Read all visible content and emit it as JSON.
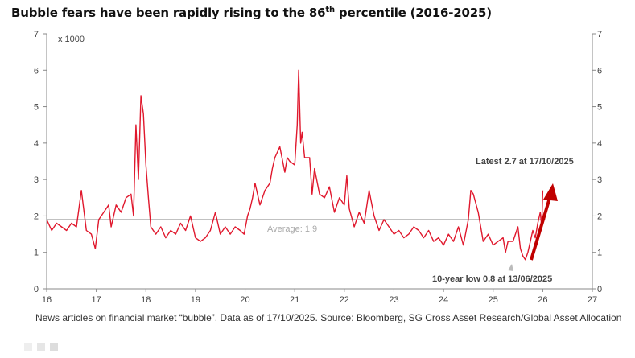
{
  "title": {
    "main": "Bubble fears have been rapidly rising to the 86",
    "sup": "th",
    "rest": " percentile (2016-2025)"
  },
  "footnote": "News articles on financial market “bubble”. Data as of 17/10/2025. Source: Bloomberg, SG Cross Asset Research/Global Asset Allocation",
  "chart_data": {
    "type": "line",
    "title": "Bubble fears have been rapidly rising to the 86th percentile (2016-2025)",
    "unit_label": "x 1000",
    "xlabel": "",
    "ylabel": "",
    "xlim": [
      16,
      27
    ],
    "ylim": [
      0,
      7
    ],
    "x_ticks": [
      "16",
      "17",
      "18",
      "19",
      "20",
      "21",
      "22",
      "23",
      "24",
      "25",
      "26",
      "27"
    ],
    "y_ticks": [
      "0",
      "1",
      "2",
      "3",
      "4",
      "5",
      "6",
      "7"
    ],
    "grid": false,
    "colors": {
      "series": "#e0182d",
      "average": "#b8b8b8",
      "arrow": "#c00000"
    },
    "series": [
      {
        "name": "News articles on financial market bubble",
        "points": [
          [
            16.0,
            1.9
          ],
          [
            16.1,
            1.6
          ],
          [
            16.2,
            1.8
          ],
          [
            16.3,
            1.7
          ],
          [
            16.4,
            1.6
          ],
          [
            16.5,
            1.8
          ],
          [
            16.6,
            1.7
          ],
          [
            16.7,
            2.7
          ],
          [
            16.8,
            1.6
          ],
          [
            16.9,
            1.5
          ],
          [
            16.98,
            1.1
          ],
          [
            17.05,
            1.9
          ],
          [
            17.15,
            2.1
          ],
          [
            17.25,
            2.3
          ],
          [
            17.3,
            1.7
          ],
          [
            17.4,
            2.3
          ],
          [
            17.5,
            2.1
          ],
          [
            17.6,
            2.5
          ],
          [
            17.7,
            2.6
          ],
          [
            17.75,
            2.0
          ],
          [
            17.8,
            4.5
          ],
          [
            17.85,
            3.0
          ],
          [
            17.9,
            5.3
          ],
          [
            17.95,
            4.8
          ],
          [
            18.0,
            3.4
          ],
          [
            18.05,
            2.5
          ],
          [
            18.1,
            1.7
          ],
          [
            18.2,
            1.5
          ],
          [
            18.3,
            1.7
          ],
          [
            18.4,
            1.4
          ],
          [
            18.5,
            1.6
          ],
          [
            18.6,
            1.5
          ],
          [
            18.7,
            1.8
          ],
          [
            18.8,
            1.6
          ],
          [
            18.9,
            2.0
          ],
          [
            19.0,
            1.4
          ],
          [
            19.1,
            1.3
          ],
          [
            19.2,
            1.4
          ],
          [
            19.3,
            1.6
          ],
          [
            19.4,
            2.1
          ],
          [
            19.5,
            1.5
          ],
          [
            19.6,
            1.7
          ],
          [
            19.7,
            1.5
          ],
          [
            19.8,
            1.7
          ],
          [
            19.9,
            1.6
          ],
          [
            19.98,
            1.5
          ],
          [
            20.05,
            2.0
          ],
          [
            20.1,
            2.2
          ],
          [
            20.15,
            2.5
          ],
          [
            20.2,
            2.9
          ],
          [
            20.3,
            2.3
          ],
          [
            20.4,
            2.7
          ],
          [
            20.5,
            2.9
          ],
          [
            20.55,
            3.3
          ],
          [
            20.6,
            3.6
          ],
          [
            20.7,
            3.9
          ],
          [
            20.8,
            3.2
          ],
          [
            20.85,
            3.6
          ],
          [
            20.9,
            3.5
          ],
          [
            21.0,
            3.4
          ],
          [
            21.05,
            4.5
          ],
          [
            21.08,
            6.0
          ],
          [
            21.12,
            4.0
          ],
          [
            21.15,
            4.3
          ],
          [
            21.2,
            3.6
          ],
          [
            21.3,
            3.6
          ],
          [
            21.35,
            2.6
          ],
          [
            21.4,
            3.3
          ],
          [
            21.5,
            2.6
          ],
          [
            21.6,
            2.5
          ],
          [
            21.7,
            2.8
          ],
          [
            21.8,
            2.1
          ],
          [
            21.9,
            2.5
          ],
          [
            22.0,
            2.3
          ],
          [
            22.05,
            3.1
          ],
          [
            22.1,
            2.2
          ],
          [
            22.2,
            1.7
          ],
          [
            22.3,
            2.1
          ],
          [
            22.4,
            1.8
          ],
          [
            22.5,
            2.7
          ],
          [
            22.6,
            2.0
          ],
          [
            22.7,
            1.6
          ],
          [
            22.8,
            1.9
          ],
          [
            22.9,
            1.7
          ],
          [
            23.0,
            1.5
          ],
          [
            23.1,
            1.6
          ],
          [
            23.2,
            1.4
          ],
          [
            23.3,
            1.5
          ],
          [
            23.4,
            1.7
          ],
          [
            23.5,
            1.6
          ],
          [
            23.6,
            1.4
          ],
          [
            23.7,
            1.6
          ],
          [
            23.8,
            1.3
          ],
          [
            23.9,
            1.4
          ],
          [
            24.0,
            1.2
          ],
          [
            24.1,
            1.5
          ],
          [
            24.2,
            1.3
          ],
          [
            24.3,
            1.7
          ],
          [
            24.4,
            1.2
          ],
          [
            24.5,
            1.9
          ],
          [
            24.55,
            2.7
          ],
          [
            24.6,
            2.6
          ],
          [
            24.7,
            2.1
          ],
          [
            24.8,
            1.3
          ],
          [
            24.9,
            1.5
          ],
          [
            25.0,
            1.2
          ],
          [
            25.1,
            1.3
          ],
          [
            25.2,
            1.4
          ],
          [
            25.25,
            1.0
          ],
          [
            25.3,
            1.3
          ],
          [
            25.4,
            1.3
          ],
          [
            25.5,
            1.7
          ],
          [
            25.55,
            1.1
          ],
          [
            25.6,
            0.9
          ],
          [
            25.65,
            0.8
          ],
          [
            25.7,
            1.0
          ],
          [
            25.8,
            1.6
          ],
          [
            25.85,
            1.4
          ],
          [
            25.9,
            1.8
          ],
          [
            25.95,
            2.1
          ],
          [
            25.98,
            1.7
          ],
          [
            26.0,
            2.7
          ]
        ]
      }
    ],
    "average": {
      "value": 1.9,
      "label": "Average: 1.9"
    },
    "annotations": {
      "latest": "Latest 2.7 at 17/10/2025",
      "low": "10-year low 0.8 at 13/06/2025"
    }
  },
  "watermark_icons": [
    "watermark-icon"
  ]
}
